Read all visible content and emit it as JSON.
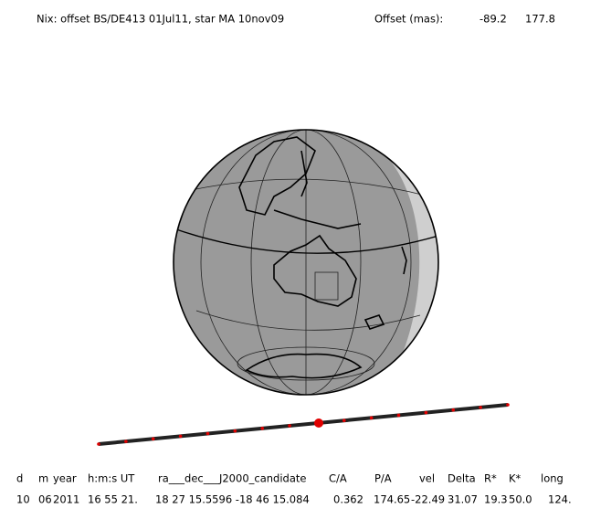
{
  "header": {
    "title": "Nix: offset BS/DE413 01Jul11, star MA 10nov09",
    "offset_label": "Offset (mas):",
    "offset_values": [
      "-89.2",
      "177.8"
    ]
  },
  "table": {
    "header": [
      "d",
      "m",
      "year",
      "h:m:s UT",
      "ra___dec___J2000_candidate",
      "C/A",
      "P/A",
      "vel",
      "Delta",
      "R*",
      "K*",
      "long"
    ],
    "rows": [
      [
        "10",
        "06",
        "2011",
        "16 55 21.",
        "18 27 15.5596 -18 46 15.084",
        "0.362",
        "174.65",
        "-22.49",
        "31.07",
        "19.3",
        "50.0",
        "124."
      ]
    ]
  }
}
